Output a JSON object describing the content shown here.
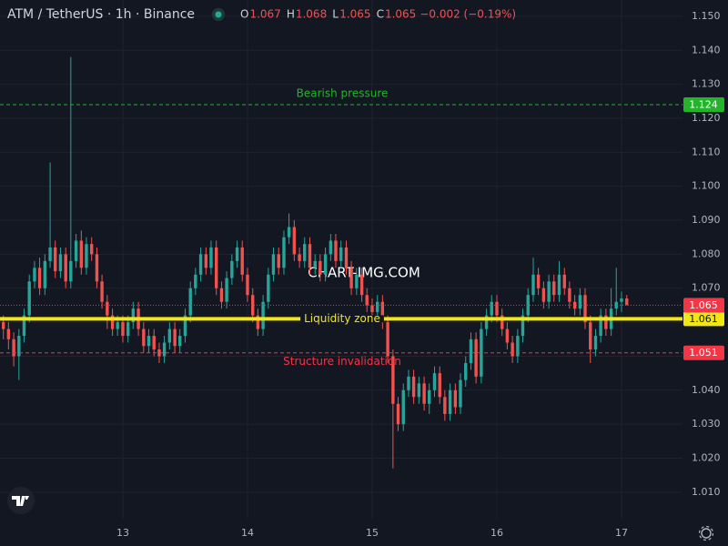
{
  "chart_data": {
    "type": "candlestick",
    "title": "ATM / TetherUS · 1h · Binance",
    "ohlc_labels": [
      "O",
      "H",
      "L",
      "C"
    ],
    "change": "−0.002 (−0.19%)",
    "watermark": "CHART-IMG.COM",
    "up_color": "#26a69a",
    "down_color": "#ef5350",
    "grid": true,
    "xlim": [
      12.015,
      17.489
    ],
    "xticks": [
      13,
      14,
      15,
      16,
      17
    ],
    "ylim": [
      1.0022,
      1.1548
    ],
    "yticks": [
      {
        "value": 1.01,
        "label": "1.010"
      },
      {
        "value": 1.02,
        "label": "1.020"
      },
      {
        "value": 1.03,
        "label": "1.030"
      },
      {
        "value": 1.04,
        "label": "1.040"
      },
      {
        "value": 1.05,
        "label": "1.050"
      },
      {
        "value": 1.06,
        "label": "1.060"
      },
      {
        "value": 1.07,
        "label": "1.070"
      },
      {
        "value": 1.08,
        "label": "1.080"
      },
      {
        "value": 1.09,
        "label": "1.090"
      },
      {
        "value": 1.1,
        "label": "1.100"
      },
      {
        "value": 1.11,
        "label": "1.110"
      },
      {
        "value": 1.12,
        "label": "1.120"
      },
      {
        "value": 1.13,
        "label": "1.130"
      },
      {
        "value": 1.14,
        "label": "1.140"
      },
      {
        "value": 1.15,
        "label": "1.150"
      }
    ],
    "levels": [
      {
        "label": "Bearish pressure",
        "value": 1.124,
        "color": "#22b52a",
        "style": "dashed",
        "label_position": "above"
      },
      {
        "label": "Liquidity zone",
        "value": 1.061,
        "color": "#f2e617",
        "style": "solid",
        "label_position": "on"
      },
      {
        "label": "Structure invalidation",
        "value": 1.051,
        "color": "#f23645",
        "style": "dashed",
        "label_position": "below"
      }
    ],
    "last_price_color": "#f23645",
    "x": [
      12.042,
      12.083,
      12.125,
      12.167,
      12.208,
      12.25,
      12.292,
      12.333,
      12.375,
      12.417,
      12.458,
      12.5,
      12.542,
      12.583,
      12.625,
      12.667,
      12.708,
      12.75,
      12.792,
      12.833,
      12.875,
      12.917,
      12.958,
      13,
      13.042,
      13.083,
      13.125,
      13.167,
      13.208,
      13.25,
      13.292,
      13.333,
      13.375,
      13.417,
      13.458,
      13.5,
      13.542,
      13.583,
      13.625,
      13.667,
      13.708,
      13.75,
      13.792,
      13.833,
      13.875,
      13.917,
      13.958,
      14,
      14.042,
      14.083,
      14.125,
      14.167,
      14.208,
      14.25,
      14.292,
      14.333,
      14.375,
      14.417,
      14.458,
      14.5,
      14.542,
      14.583,
      14.625,
      14.667,
      14.708,
      14.75,
      14.792,
      14.833,
      14.875,
      14.917,
      14.958,
      15,
      15.042,
      15.083,
      15.125,
      15.167,
      15.208,
      15.25,
      15.292,
      15.333,
      15.375,
      15.417,
      15.458,
      15.5,
      15.542,
      15.583,
      15.625,
      15.667,
      15.708,
      15.75,
      15.792,
      15.833,
      15.875,
      15.917,
      15.958,
      16,
      16.042,
      16.083,
      16.125,
      16.167,
      16.208,
      16.25,
      16.292,
      16.333,
      16.375,
      16.417,
      16.458,
      16.5,
      16.542,
      16.583,
      16.625,
      16.667,
      16.708,
      16.75,
      16.792,
      16.833,
      16.875,
      16.917,
      16.958,
      17,
      17.042
    ],
    "open": [
      1.06,
      1.058,
      1.055,
      1.05,
      1.056,
      1.062,
      1.072,
      1.076,
      1.07,
      1.078,
      1.082,
      1.075,
      1.08,
      1.072,
      1.078,
      1.084,
      1.076,
      1.083,
      1.08,
      1.072,
      1.066,
      1.062,
      1.058,
      1.06,
      1.056,
      1.06,
      1.064,
      1.058,
      1.053,
      1.056,
      1.052,
      1.05,
      1.054,
      1.058,
      1.053,
      1.056,
      1.062,
      1.07,
      1.074,
      1.08,
      1.076,
      1.082,
      1.07,
      1.066,
      1.073,
      1.078,
      1.082,
      1.074,
      1.068,
      1.062,
      1.058,
      1.066,
      1.074,
      1.08,
      1.076,
      1.085,
      1.088,
      1.08,
      1.078,
      1.083,
      1.076,
      1.078,
      1.074,
      1.08,
      1.084,
      1.078,
      1.082,
      1.076,
      1.07,
      1.074,
      1.068,
      1.065,
      1.063,
      1.066,
      1.06,
      1.05,
      1.036,
      1.03,
      1.04,
      1.044,
      1.038,
      1.042,
      1.036,
      1.04,
      1.045,
      1.038,
      1.033,
      1.04,
      1.035,
      1.043,
      1.048,
      1.055,
      1.044,
      1.058,
      1.062,
      1.066,
      1.062,
      1.058,
      1.054,
      1.05,
      1.056,
      1.062,
      1.068,
      1.074,
      1.07,
      1.066,
      1.072,
      1.068,
      1.074,
      1.07,
      1.066,
      1.064,
      1.068,
      1.06,
      1.052,
      1.056,
      1.062,
      1.058,
      1.064,
      1.066,
      1.067
    ],
    "high": [
      1.062,
      1.06,
      1.057,
      1.058,
      1.064,
      1.074,
      1.078,
      1.079,
      1.08,
      1.107,
      1.084,
      1.082,
      1.082,
      1.138,
      1.086,
      1.087,
      1.085,
      1.085,
      1.082,
      1.074,
      1.068,
      1.064,
      1.062,
      1.062,
      1.062,
      1.066,
      1.066,
      1.06,
      1.058,
      1.058,
      1.054,
      1.056,
      1.06,
      1.06,
      1.058,
      1.064,
      1.072,
      1.076,
      1.082,
      1.082,
      1.084,
      1.084,
      1.072,
      1.075,
      1.08,
      1.084,
      1.084,
      1.076,
      1.07,
      1.064,
      1.068,
      1.076,
      1.082,
      1.082,
      1.087,
      1.092,
      1.09,
      1.082,
      1.085,
      1.085,
      1.08,
      1.08,
      1.082,
      1.086,
      1.086,
      1.084,
      1.084,
      1.078,
      1.076,
      1.076,
      1.07,
      1.067,
      1.068,
      1.068,
      1.062,
      1.052,
      1.038,
      1.042,
      1.046,
      1.046,
      1.044,
      1.044,
      1.042,
      1.047,
      1.047,
      1.04,
      1.042,
      1.042,
      1.045,
      1.05,
      1.057,
      1.057,
      1.06,
      1.064,
      1.068,
      1.068,
      1.064,
      1.06,
      1.056,
      1.058,
      1.064,
      1.07,
      1.079,
      1.076,
      1.072,
      1.074,
      1.074,
      1.078,
      1.076,
      1.072,
      1.068,
      1.07,
      1.07,
      1.062,
      1.058,
      1.064,
      1.064,
      1.07,
      1.076,
      1.069,
      1.068
    ],
    "low": [
      1.055,
      1.052,
      1.047,
      1.043,
      1.054,
      1.06,
      1.07,
      1.068,
      1.068,
      1.076,
      1.073,
      1.073,
      1.07,
      1.07,
      1.076,
      1.074,
      1.074,
      1.078,
      1.07,
      1.064,
      1.058,
      1.056,
      1.056,
      1.054,
      1.054,
      1.058,
      1.056,
      1.051,
      1.051,
      1.05,
      1.048,
      1.048,
      1.052,
      1.051,
      1.051,
      1.054,
      1.06,
      1.068,
      1.072,
      1.074,
      1.074,
      1.068,
      1.064,
      1.064,
      1.071,
      1.076,
      1.072,
      1.066,
      1.06,
      1.056,
      1.056,
      1.064,
      1.072,
      1.074,
      1.074,
      1.083,
      1.078,
      1.076,
      1.076,
      1.074,
      1.074,
      1.072,
      1.072,
      1.078,
      1.076,
      1.076,
      1.074,
      1.068,
      1.068,
      1.066,
      1.063,
      1.061,
      1.061,
      1.058,
      1.048,
      1.017,
      1.028,
      1.028,
      1.038,
      1.036,
      1.036,
      1.034,
      1.033,
      1.038,
      1.036,
      1.031,
      1.031,
      1.033,
      1.033,
      1.041,
      1.046,
      1.042,
      1.042,
      1.056,
      1.06,
      1.06,
      1.056,
      1.052,
      1.048,
      1.048,
      1.054,
      1.06,
      1.066,
      1.068,
      1.064,
      1.064,
      1.066,
      1.066,
      1.068,
      1.064,
      1.062,
      1.062,
      1.058,
      1.048,
      1.05,
      1.054,
      1.056,
      1.056,
      1.062,
      1.063,
      1.065
    ],
    "close": [
      1.058,
      1.055,
      1.05,
      1.056,
      1.062,
      1.072,
      1.076,
      1.07,
      1.078,
      1.082,
      1.075,
      1.08,
      1.072,
      1.078,
      1.084,
      1.076,
      1.083,
      1.08,
      1.072,
      1.066,
      1.062,
      1.058,
      1.06,
      1.056,
      1.06,
      1.064,
      1.058,
      1.053,
      1.056,
      1.052,
      1.05,
      1.054,
      1.058,
      1.053,
      1.056,
      1.062,
      1.07,
      1.074,
      1.08,
      1.076,
      1.082,
      1.07,
      1.066,
      1.073,
      1.078,
      1.082,
      1.074,
      1.068,
      1.062,
      1.058,
      1.066,
      1.074,
      1.08,
      1.076,
      1.085,
      1.088,
      1.08,
      1.078,
      1.083,
      1.076,
      1.078,
      1.074,
      1.08,
      1.084,
      1.078,
      1.082,
      1.076,
      1.07,
      1.074,
      1.068,
      1.065,
      1.063,
      1.066,
      1.06,
      1.05,
      1.036,
      1.03,
      1.04,
      1.044,
      1.038,
      1.042,
      1.036,
      1.04,
      1.045,
      1.038,
      1.033,
      1.04,
      1.035,
      1.043,
      1.048,
      1.055,
      1.044,
      1.058,
      1.062,
      1.066,
      1.062,
      1.058,
      1.054,
      1.05,
      1.056,
      1.062,
      1.068,
      1.074,
      1.07,
      1.066,
      1.072,
      1.068,
      1.074,
      1.07,
      1.066,
      1.064,
      1.068,
      1.06,
      1.052,
      1.056,
      1.062,
      1.058,
      1.064,
      1.066,
      1.067,
      1.065
    ]
  }
}
